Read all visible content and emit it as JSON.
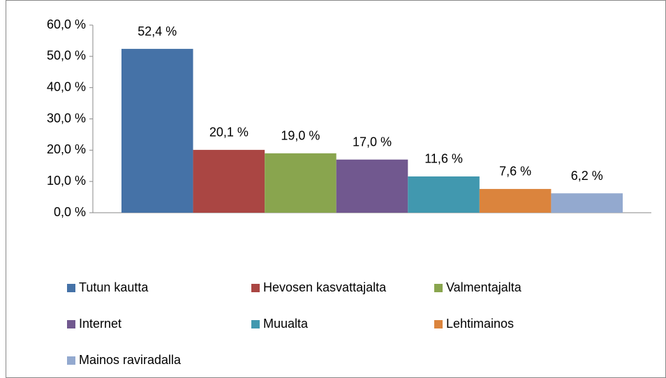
{
  "chart_data": {
    "type": "bar",
    "categories": [
      null
    ],
    "series": [
      {
        "name": "Tutun kautta",
        "color": "#4572a7",
        "values": [
          52.4
        ],
        "value_labels": [
          "52,4 %"
        ]
      },
      {
        "name": "Hevosen kasvattajalta",
        "color": "#aa4643",
        "values": [
          20.1
        ],
        "value_labels": [
          "20,1 %"
        ]
      },
      {
        "name": "Valmentajalta",
        "color": "#89a54e",
        "values": [
          19.0
        ],
        "value_labels": [
          "19,0 %"
        ]
      },
      {
        "name": "Internet",
        "color": "#71588f",
        "values": [
          17.0
        ],
        "value_labels": [
          "17,0 %"
        ]
      },
      {
        "name": "Muualta",
        "color": "#4198af",
        "values": [
          11.6
        ],
        "value_labels": [
          "11,6 %"
        ]
      },
      {
        "name": "Lehtimainos",
        "color": "#db843d",
        "values": [
          7.6
        ],
        "value_labels": [
          "7,6 %"
        ]
      },
      {
        "name": "Mainos raviradalla",
        "color": "#93a9cf",
        "values": [
          6.2
        ],
        "value_labels": [
          "6,2 %"
        ]
      }
    ],
    "ylim": [
      0,
      60
    ],
    "yticks": [
      {
        "value": 0,
        "label": "0,0 %"
      },
      {
        "value": 10,
        "label": "10,0 %"
      },
      {
        "value": 20,
        "label": "20,0 %"
      },
      {
        "value": 30,
        "label": "30,0 %"
      },
      {
        "value": 40,
        "label": "40,0 %"
      },
      {
        "value": 50,
        "label": "50,0 %"
      },
      {
        "value": 60,
        "label": "60,0 %"
      }
    ],
    "grid": false,
    "legend": "bottom"
  }
}
